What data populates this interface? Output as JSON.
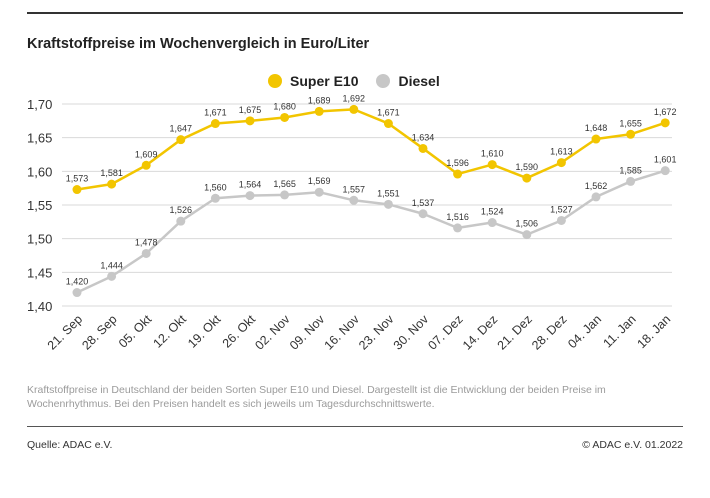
{
  "title": "Kraftstoffpreise im Wochenvergleich in Euro/Liter",
  "caption": "Kraftstoffpreise in Deutschland der beiden Sorten Super E10 und Diesel. Dargestellt ist die Entwicklung der beiden Preise im Wochenrhythmus. Bei den Preisen handelt es sich jeweils um Tagesdurchschnittswerte.",
  "source": "Quelle: ADAC e.V.",
  "copyright": "© ADAC e.V. 01.2022",
  "colors": {
    "super": "#f2c500",
    "diesel": "#c7c7c7"
  },
  "chart_data": {
    "type": "line",
    "title": "Kraftstoffpreise im Wochenvergleich in Euro/Liter",
    "categories": [
      "21. Sep",
      "28. Sep",
      "05. Okt",
      "12. Okt",
      "19. Okt",
      "26. Okt",
      "02. Nov",
      "09. Nov",
      "16. Nov",
      "23. Nov",
      "30. Nov",
      "07. Dez",
      "14. Dez",
      "21. Dez",
      "28. Dez",
      "04. Jan",
      "11. Jan",
      "18. Jan"
    ],
    "series": [
      {
        "name": "Super E10",
        "values": [
          1.573,
          1.581,
          1.609,
          1.647,
          1.671,
          1.675,
          1.68,
          1.689,
          1.692,
          1.671,
          1.634,
          1.596,
          1.61,
          1.59,
          1.613,
          1.648,
          1.655,
          1.672
        ],
        "labels": [
          "1,573",
          "1,581",
          "1,609",
          "1,647",
          "1,671",
          "1,675",
          "1,680",
          "1,689",
          "1,692",
          "1,671",
          "1,634",
          "1,596",
          "1,610",
          "1,590",
          "1,613",
          "1,648",
          "1,655",
          "1,672"
        ]
      },
      {
        "name": "Diesel",
        "values": [
          1.42,
          1.444,
          1.478,
          1.526,
          1.56,
          1.564,
          1.565,
          1.569,
          1.557,
          1.551,
          1.537,
          1.516,
          1.524,
          1.506,
          1.527,
          1.562,
          1.585,
          1.601
        ],
        "labels": [
          "1,420",
          "1,444",
          "1,478",
          "1,526",
          "1,560",
          "1,564",
          "1,565",
          "1,569",
          "1,557",
          "1,551",
          "1,537",
          "1,516",
          "1,524",
          "1,506",
          "1,527",
          "1,562",
          "1,585",
          "1,601"
        ]
      }
    ],
    "yticks": [
      1.4,
      1.45,
      1.5,
      1.55,
      1.6,
      1.65,
      1.7
    ],
    "ytick_labels": [
      "1,40",
      "1,45",
      "1,50",
      "1,55",
      "1,60",
      "1,65",
      "1,70"
    ],
    "ylim": [
      1.4,
      1.7
    ],
    "grid": "horizontal",
    "legend": "top-center"
  }
}
